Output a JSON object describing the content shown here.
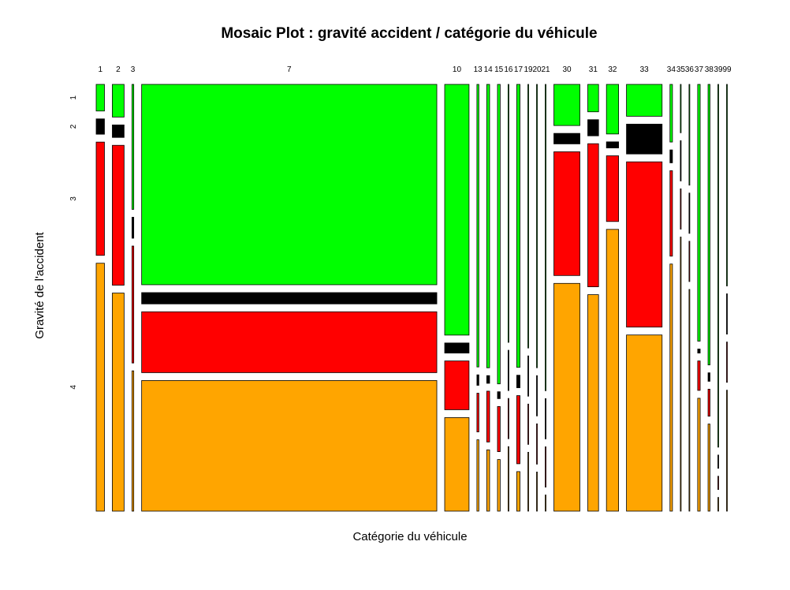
{
  "chart_data": {
    "type": "mosaic",
    "title": "Mosaic Plot : gravité accident / catégorie du véhicule",
    "xlabel": "Catégorie du véhicule",
    "ylabel": "Gravité de l'accident",
    "categories": [
      "1",
      "2",
      "3",
      "7",
      "10",
      "13",
      "14",
      "15",
      "16",
      "17",
      "19",
      "20",
      "21",
      "30",
      "31",
      "32",
      "33",
      "34",
      "35",
      "36",
      "37",
      "38",
      "39",
      "99"
    ],
    "levels": [
      "1",
      "2",
      "3",
      "4"
    ],
    "level_colors": [
      "#00ff00",
      "#000000",
      "#ff0000",
      "#ffa500"
    ],
    "column_shares": [
      0.0153,
      0.0218,
      0.0033,
      0.547,
      0.0451,
      0.0036,
      0.0053,
      0.005,
      0.001,
      0.006,
      0.001,
      0.001,
      0.001,
      0.0482,
      0.02,
      0.0225,
      0.066,
      0.0046,
      0.001,
      0.001,
      0.0046,
      0.0036,
      0.001,
      0.001
    ],
    "column_proportions": [
      [
        0.066,
        0.038,
        0.281,
        0.615
      ],
      [
        0.081,
        0.031,
        0.347,
        0.541
      ],
      [
        0.31,
        0.052,
        0.29,
        0.348
      ],
      [
        0.497,
        0.028,
        0.151,
        0.324
      ],
      [
        0.622,
        0.025,
        0.121,
        0.232
      ],
      [
        0.701,
        0.026,
        0.096,
        0.177
      ],
      [
        0.703,
        0.019,
        0.126,
        0.152
      ],
      [
        0.743,
        0.017,
        0.112,
        0.128
      ],
      [
        0.64,
        0.1,
        0.1,
        0.16
      ],
      [
        0.702,
        0.031,
        0.169,
        0.098
      ],
      [
        0.654,
        0.1,
        0.1,
        0.146
      ],
      [
        0.703,
        0.1,
        0.1,
        0.097
      ],
      [
        0.76,
        0.1,
        0.1,
        0.04
      ],
      [
        0.102,
        0.026,
        0.307,
        0.565
      ],
      [
        0.068,
        0.04,
        0.355,
        0.537
      ],
      [
        0.123,
        0.015,
        0.163,
        0.699
      ],
      [
        0.079,
        0.074,
        0.41,
        0.437
      ],
      [
        0.143,
        0.032,
        0.212,
        0.613
      ],
      [
        0.12,
        0.1,
        0.1,
        0.68
      ],
      [
        0.25,
        0.1,
        0.1,
        0.55
      ],
      [
        0.637,
        0.01,
        0.073,
        0.28
      ],
      [
        0.696,
        0.021,
        0.067,
        0.216
      ],
      [
        0.9,
        0.033,
        0.033,
        0.034
      ],
      [
        0.5,
        0.1,
        0.1,
        0.3
      ]
    ]
  }
}
